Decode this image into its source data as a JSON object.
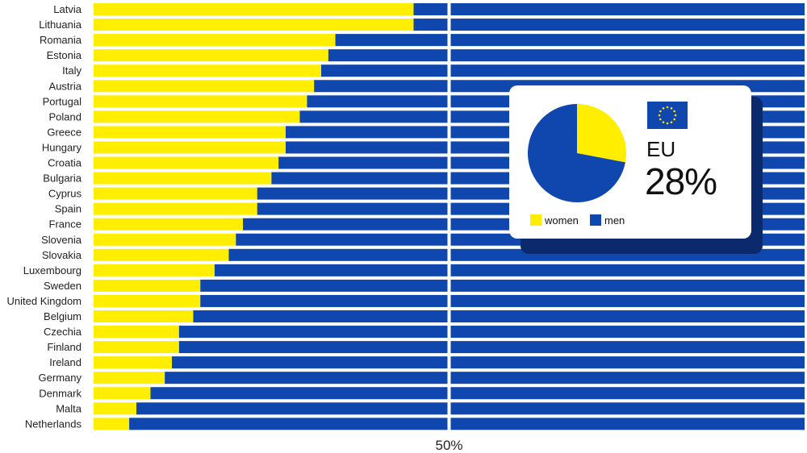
{
  "chart_data": {
    "type": "bar",
    "orientation": "horizontal",
    "stacked": true,
    "categories": [
      "Latvia",
      "Lithuania",
      "Romania",
      "Estonia",
      "Italy",
      "Austria",
      "Portugal",
      "Poland",
      "Greece",
      "Hungary",
      "Croatia",
      "Bulgaria",
      "Cyprus",
      "Spain",
      "France",
      "Slovenia",
      "Slovakia",
      "Luxembourg",
      "Sweden",
      "United Kingdom",
      "Belgium",
      "Czechia",
      "Finland",
      "Ireland",
      "Germany",
      "Denmark",
      "Malta",
      "Netherlands"
    ],
    "series": [
      {
        "name": "women",
        "color": "#ffee00",
        "values": [
          45,
          45,
          34,
          33,
          32,
          31,
          30,
          29,
          27,
          27,
          26,
          25,
          23,
          23,
          21,
          20,
          19,
          17,
          15,
          15,
          14,
          12,
          12,
          11,
          10,
          8,
          6,
          5
        ]
      },
      {
        "name": "men",
        "color": "#0f47af",
        "values": [
          55,
          55,
          66,
          67,
          68,
          69,
          70,
          71,
          73,
          73,
          74,
          75,
          77,
          77,
          79,
          80,
          81,
          83,
          85,
          85,
          86,
          88,
          88,
          89,
          90,
          92,
          94,
          95
        ]
      }
    ],
    "xlim": [
      0,
      100
    ],
    "reference_line": {
      "value": 50,
      "label": "50%"
    },
    "inset": {
      "type": "pie",
      "label": "EU",
      "share_text": "28%",
      "slices": [
        {
          "name": "women",
          "value": 28,
          "color": "#ffee00"
        },
        {
          "name": "men",
          "value": 72,
          "color": "#0f47af"
        }
      ],
      "legend": [
        "women",
        "men"
      ],
      "flag_icon": "eu-flag-icon"
    }
  }
}
